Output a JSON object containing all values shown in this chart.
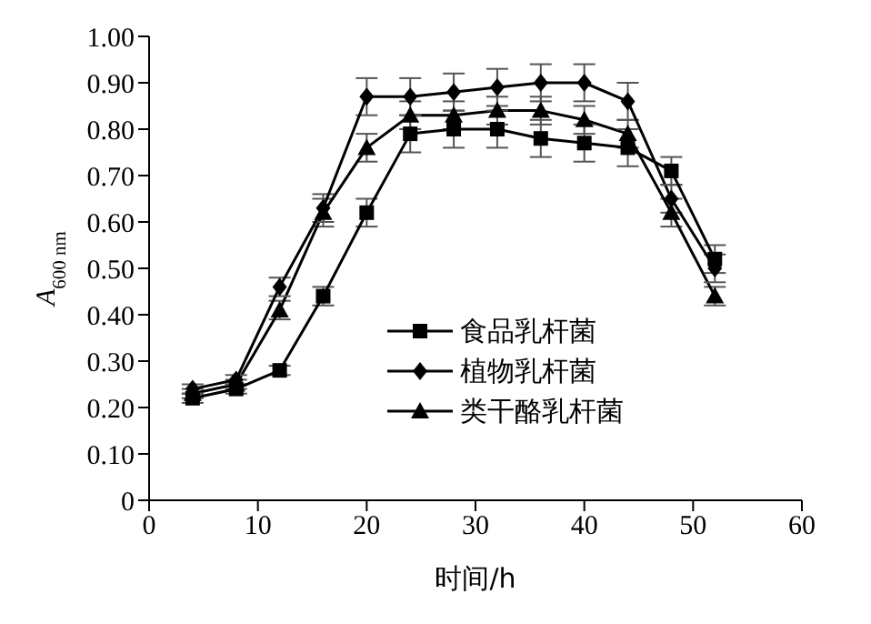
{
  "chart_data": {
    "type": "line",
    "xlabel": "时间/h",
    "ylabel": "A$_{600 nm}$",
    "xlim": [
      0,
      60
    ],
    "xticks": [
      0,
      10,
      20,
      30,
      40,
      50,
      60
    ],
    "ylim": [
      0,
      1
    ],
    "yticks": [
      {
        "value": 0,
        "label": "0"
      },
      {
        "value": 0.1,
        "label": "0.10"
      },
      {
        "value": 0.2,
        "label": "0.20"
      },
      {
        "value": 0.3,
        "label": "0.30"
      },
      {
        "value": 0.4,
        "label": "0.40"
      },
      {
        "value": 0.5,
        "label": "0.50"
      },
      {
        "value": 0.6,
        "label": "0.60"
      },
      {
        "value": 0.7,
        "label": "0.70"
      },
      {
        "value": 0.8,
        "label": "0.80"
      },
      {
        "value": 0.9,
        "label": "0.90"
      },
      {
        "value": 1,
        "label": "1.00"
      }
    ],
    "x": [
      4,
      8,
      12,
      16,
      20,
      24,
      28,
      32,
      36,
      40,
      44,
      48,
      52
    ],
    "series": [
      {
        "name": "食品乳杆菌",
        "color": "#000000",
        "marker": "square",
        "values": [
          0.22,
          0.24,
          0.28,
          0.44,
          0.62,
          0.79,
          0.8,
          0.8,
          0.78,
          0.77,
          0.76,
          0.71,
          0.52
        ],
        "errors": [
          0.01,
          0.01,
          0.01,
          0.02,
          0.03,
          0.04,
          0.04,
          0.04,
          0.04,
          0.04,
          0.04,
          0.03,
          0.03
        ]
      },
      {
        "name": "植物乳杆菌",
        "color": "#000000",
        "marker": "diamond",
        "values": [
          0.24,
          0.26,
          0.46,
          0.63,
          0.87,
          0.87,
          0.88,
          0.89,
          0.9,
          0.9,
          0.86,
          0.65,
          0.5
        ],
        "errors": [
          0.01,
          0.01,
          0.02,
          0.03,
          0.04,
          0.04,
          0.04,
          0.04,
          0.04,
          0.04,
          0.04,
          0.03,
          0.03
        ]
      },
      {
        "name": "类干酪乳杆菌",
        "color": "#000000",
        "marker": "triangle",
        "values": [
          0.23,
          0.25,
          0.41,
          0.62,
          0.76,
          0.83,
          0.83,
          0.84,
          0.84,
          0.82,
          0.79,
          0.62,
          0.44
        ],
        "errors": [
          0.01,
          0.01,
          0.02,
          0.03,
          0.03,
          0.03,
          0.03,
          0.03,
          0.03,
          0.03,
          0.03,
          0.03,
          0.02
        ]
      }
    ],
    "legend": "bottom right",
    "grid": false,
    "line_style": "solid"
  }
}
